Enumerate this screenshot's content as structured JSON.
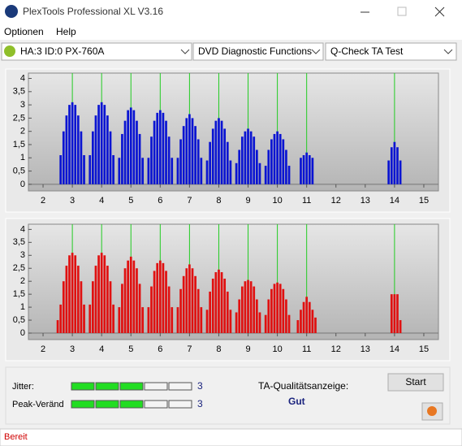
{
  "window": {
    "title": "PlexTools Professional XL V3.16"
  },
  "menu": [
    "Optionen",
    "Help"
  ],
  "toolbar": {
    "drive": "HA:3 ID:0  PX-760A",
    "function": "DVD Diagnostic Functions",
    "test": "Q-Check TA Test"
  },
  "chart_data": [
    {
      "type": "bar",
      "color": "#0a14d2",
      "marker_color": "#22cc22",
      "xlim": [
        1.5,
        15.5
      ],
      "xticks": [
        2,
        3,
        4,
        5,
        6,
        7,
        8,
        9,
        10,
        11,
        12,
        13,
        14,
        15
      ],
      "ylim": [
        -0.25,
        4.2
      ],
      "yticks": [
        0,
        {
          "value": 0.5,
          "label": "0,5"
        },
        1,
        {
          "value": 1.5,
          "label": "1,5"
        },
        2,
        {
          "value": 2.5,
          "label": "2,5"
        },
        3,
        {
          "value": 3.5,
          "label": "3,5"
        },
        4
      ],
      "markers": [
        3,
        4,
        5,
        6,
        7,
        8,
        9,
        10,
        11,
        14
      ],
      "x": [
        2.6,
        2.7,
        2.8,
        2.9,
        3.0,
        3.1,
        3.2,
        3.3,
        3.4,
        3.6,
        3.7,
        3.8,
        3.9,
        4.0,
        4.1,
        4.2,
        4.3,
        4.4,
        4.6,
        4.7,
        4.8,
        4.9,
        5.0,
        5.1,
        5.2,
        5.3,
        5.4,
        5.6,
        5.7,
        5.8,
        5.9,
        6.0,
        6.1,
        6.2,
        6.3,
        6.4,
        6.6,
        6.7,
        6.8,
        6.9,
        7.0,
        7.1,
        7.2,
        7.3,
        7.4,
        7.6,
        7.7,
        7.8,
        7.9,
        8.0,
        8.1,
        8.2,
        8.3,
        8.4,
        8.6,
        8.7,
        8.8,
        8.9,
        9.0,
        9.1,
        9.2,
        9.3,
        9.4,
        9.6,
        9.7,
        9.8,
        9.9,
        10.0,
        10.1,
        10.2,
        10.3,
        10.4,
        10.8,
        10.9,
        11.0,
        11.1,
        11.2,
        13.8,
        13.9,
        14.0,
        14.1,
        14.2
      ],
      "values": [
        1.1,
        2.0,
        2.6,
        3.0,
        3.1,
        3.0,
        2.6,
        2.0,
        1.1,
        1.1,
        2.0,
        2.6,
        3.0,
        3.1,
        3.0,
        2.6,
        2.0,
        1.1,
        1.0,
        1.9,
        2.4,
        2.8,
        2.9,
        2.8,
        2.4,
        1.9,
        1.0,
        1.0,
        1.8,
        2.4,
        2.7,
        2.8,
        2.7,
        2.4,
        1.8,
        1.0,
        1.0,
        1.7,
        2.2,
        2.5,
        2.65,
        2.5,
        2.2,
        1.7,
        1.0,
        0.9,
        1.6,
        2.1,
        2.4,
        2.5,
        2.4,
        2.1,
        1.6,
        0.9,
        0.8,
        1.3,
        1.8,
        2.0,
        2.1,
        2.0,
        1.8,
        1.3,
        0.8,
        0.7,
        1.3,
        1.7,
        1.9,
        2.0,
        1.9,
        1.7,
        1.3,
        0.7,
        1.0,
        1.1,
        1.2,
        1.1,
        1.0,
        0.9,
        1.4,
        1.6,
        1.4,
        0.9
      ]
    },
    {
      "type": "bar",
      "color": "#e01010",
      "marker_color": "#22cc22",
      "xlim": [
        1.5,
        15.5
      ],
      "xticks": [
        2,
        3,
        4,
        5,
        6,
        7,
        8,
        9,
        10,
        11,
        12,
        13,
        14,
        15
      ],
      "ylim": [
        -0.25,
        4.2
      ],
      "yticks": [
        0,
        {
          "value": 0.5,
          "label": "0,5"
        },
        1,
        {
          "value": 1.5,
          "label": "1,5"
        },
        2,
        {
          "value": 2.5,
          "label": "2,5"
        },
        3,
        {
          "value": 3.5,
          "label": "3,5"
        },
        4
      ],
      "markers": [
        3,
        4,
        5,
        6,
        7,
        8,
        9,
        10,
        11,
        14
      ],
      "x": [
        2.5,
        2.6,
        2.7,
        2.8,
        2.9,
        3.0,
        3.1,
        3.2,
        3.3,
        3.4,
        3.6,
        3.7,
        3.8,
        3.9,
        4.0,
        4.1,
        4.2,
        4.3,
        4.4,
        4.6,
        4.7,
        4.8,
        4.9,
        5.0,
        5.1,
        5.2,
        5.3,
        5.4,
        5.6,
        5.7,
        5.8,
        5.9,
        6.0,
        6.1,
        6.2,
        6.3,
        6.4,
        6.6,
        6.7,
        6.8,
        6.9,
        7.0,
        7.1,
        7.2,
        7.3,
        7.4,
        7.6,
        7.7,
        7.8,
        7.9,
        8.0,
        8.1,
        8.2,
        8.3,
        8.4,
        8.6,
        8.7,
        8.8,
        8.9,
        9.0,
        9.1,
        9.2,
        9.3,
        9.4,
        9.6,
        9.7,
        9.8,
        9.9,
        10.0,
        10.1,
        10.2,
        10.3,
        10.4,
        10.7,
        10.8,
        10.9,
        11.0,
        11.1,
        11.2,
        11.3,
        13.9,
        14.0,
        14.1,
        14.2
      ],
      "values": [
        0.5,
        1.1,
        2.0,
        2.6,
        3.0,
        3.1,
        3.0,
        2.6,
        2.0,
        1.1,
        1.1,
        2.0,
        2.6,
        3.0,
        3.1,
        3.0,
        2.6,
        2.0,
        1.1,
        1.0,
        1.9,
        2.5,
        2.8,
        2.95,
        2.8,
        2.5,
        1.9,
        1.0,
        1.0,
        1.8,
        2.4,
        2.7,
        2.8,
        2.7,
        2.4,
        1.8,
        1.0,
        1.0,
        1.7,
        2.2,
        2.5,
        2.65,
        2.5,
        2.2,
        1.7,
        1.0,
        0.9,
        1.6,
        2.1,
        2.35,
        2.45,
        2.35,
        2.1,
        1.6,
        0.9,
        0.8,
        1.3,
        1.8,
        2.0,
        2.05,
        2.0,
        1.8,
        1.3,
        0.8,
        0.7,
        1.3,
        1.7,
        1.9,
        1.95,
        1.9,
        1.7,
        1.3,
        0.7,
        0.5,
        0.9,
        1.2,
        1.4,
        1.2,
        0.9,
        0.6,
        1.5,
        1.5,
        1.5,
        0.5
      ]
    }
  ],
  "meters": [
    {
      "label": "Jitter:",
      "value": 3,
      "max": 5
    },
    {
      "label": "Peak-Veränd",
      "value": 3,
      "max": 5
    }
  ],
  "quality": {
    "label": "TA-Qualitätsanzeige:",
    "result": "Gut"
  },
  "start_button": "Start",
  "status": "Bereit"
}
